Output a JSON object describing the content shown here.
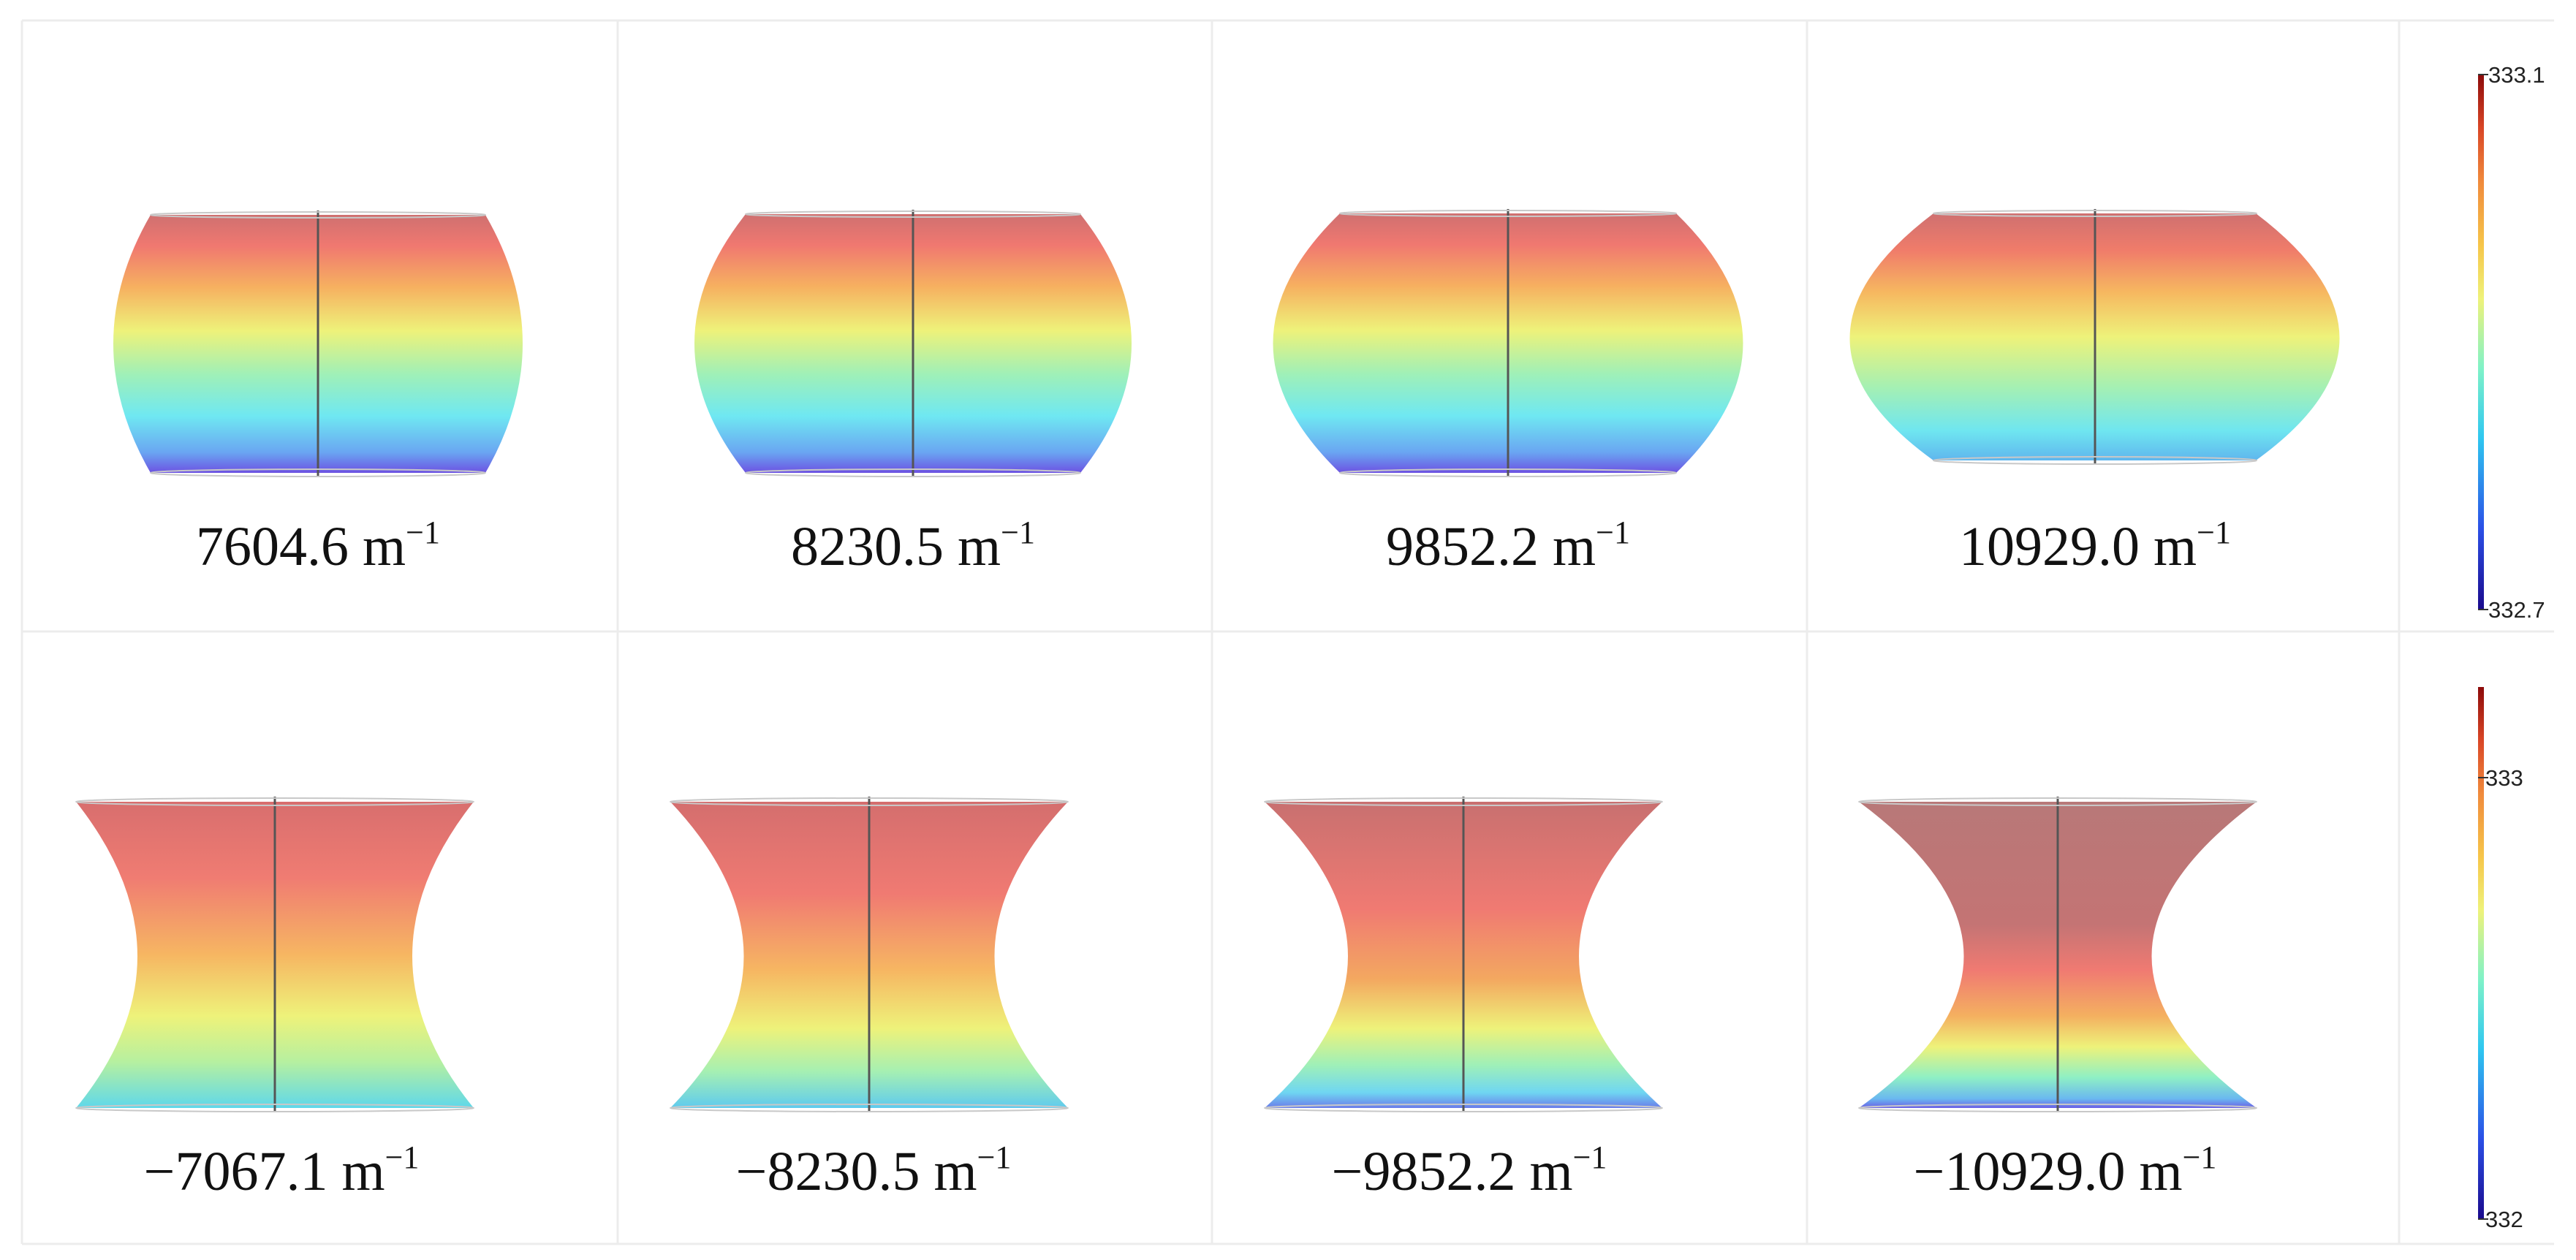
{
  "rows": [
    {
      "panels": [
        {
          "curvature_value": "7604.6",
          "unit": "m",
          "exponent": "−1"
        },
        {
          "curvature_value": "8230.5",
          "unit": "m",
          "exponent": "−1"
        },
        {
          "curvature_value": "9852.2",
          "unit": "m",
          "exponent": "−1"
        },
        {
          "curvature_value": "10929.0",
          "unit": "m",
          "exponent": "−1"
        }
      ],
      "colorbar": {
        "max_label": "333.1",
        "min_label": "332.7",
        "ticks": [],
        "max": 333.1,
        "min": 332.7
      }
    },
    {
      "panels": [
        {
          "curvature_value": "−7067.1",
          "unit": "m",
          "exponent": "−1"
        },
        {
          "curvature_value": "−8230.5",
          "unit": "m",
          "exponent": "−1"
        },
        {
          "curvature_value": "−9852.2",
          "unit": "m",
          "exponent": "−1"
        },
        {
          "curvature_value": "−10929.0",
          "unit": "m",
          "exponent": "−1"
        }
      ],
      "colorbar": {
        "max_label": "",
        "min_label": "332",
        "ticks": [
          {
            "label": "333",
            "value": 333
          }
        ],
        "max": 333.15,
        "min": 332
      }
    }
  ],
  "colormap": [
    "#1a0a8c",
    "#2b4fe6",
    "#2fc7f0",
    "#7ff2c8",
    "#eef27a",
    "#f6c64a",
    "#f08a3c",
    "#d94626",
    "#8c0a0a"
  ]
}
